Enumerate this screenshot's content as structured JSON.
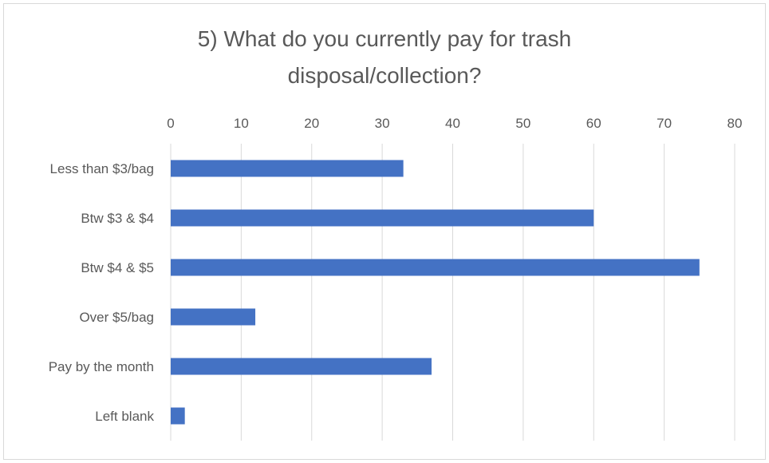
{
  "chart_data": {
    "type": "bar",
    "orientation": "horizontal",
    "title_lines": [
      "5) What do you currently pay for trash",
      "disposal/collection?"
    ],
    "categories": [
      "Less than $3/bag",
      "Btw $3 & $4",
      "Btw $4 & $5",
      "Over $5/bag",
      "Pay by the month",
      "Left blank"
    ],
    "values": [
      33,
      60,
      75,
      12,
      37,
      2
    ],
    "xlim": [
      0,
      80
    ],
    "x_ticks": [
      "0",
      "10",
      "20",
      "30",
      "40",
      "50",
      "60",
      "70",
      "80"
    ],
    "x_axis_position": "top",
    "grid": true,
    "bar_color": "#4472C4",
    "grid_color": "#d9d9d9",
    "text_color": "#595959"
  }
}
